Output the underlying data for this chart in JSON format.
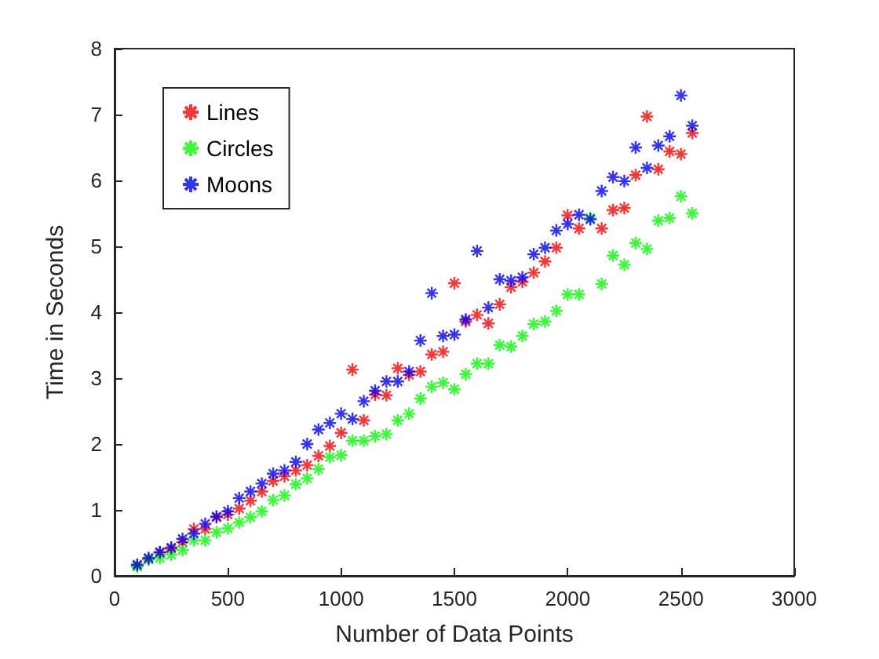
{
  "chart_data": {
    "type": "scatter",
    "xlabel": "Number of Data Points",
    "ylabel": "Time in Seconds",
    "x": [
      100,
      150,
      200,
      250,
      300,
      350,
      400,
      450,
      500,
      550,
      600,
      650,
      700,
      750,
      800,
      850,
      900,
      950,
      1000,
      1050,
      1100,
      1150,
      1200,
      1250,
      1300,
      1350,
      1400,
      1450,
      1500,
      1550,
      1600,
      1650,
      1700,
      1750,
      1800,
      1850,
      1900,
      1950,
      2000,
      2050,
      2100,
      2150,
      2200,
      2250,
      2300,
      2350,
      2400,
      2450,
      2500,
      2550
    ],
    "series": [
      {
        "name": "Lines",
        "color": "#ff0000",
        "values": [
          0.15,
          0.25,
          0.35,
          0.41,
          0.51,
          0.71,
          0.71,
          0.89,
          0.93,
          1.02,
          1.14,
          1.28,
          1.44,
          1.51,
          1.6,
          1.68,
          1.82,
          1.97,
          2.17,
          3.13,
          2.36,
          2.75,
          2.74,
          3.15,
          3.05,
          3.1,
          3.36,
          3.4,
          4.44,
          3.86,
          3.96,
          3.83,
          4.12,
          4.38,
          4.46,
          4.6,
          4.77,
          4.98,
          5.47,
          5.27,
          null,
          5.27,
          5.55,
          5.58,
          6.08,
          6.97,
          6.17,
          6.44,
          6.4,
          6.72
        ]
      },
      {
        "name": "Circles",
        "color": "#00ff00",
        "values": [
          0.14,
          0.25,
          0.27,
          0.32,
          0.39,
          0.54,
          0.54,
          0.66,
          0.72,
          0.81,
          0.89,
          0.98,
          1.15,
          1.22,
          1.39,
          1.48,
          1.62,
          1.8,
          1.83,
          2.05,
          2.05,
          2.12,
          2.15,
          2.36,
          2.46,
          2.69,
          2.87,
          2.93,
          2.83,
          3.06,
          3.22,
          3.22,
          3.5,
          3.48,
          3.64,
          3.82,
          3.86,
          4.02,
          4.27,
          4.27,
          5.43,
          4.43,
          4.86,
          4.72,
          5.05,
          4.96,
          5.39,
          5.43,
          5.76,
          5.5
        ]
      },
      {
        "name": "Moons",
        "color": "#0000ff",
        "values": [
          0.17,
          0.27,
          0.36,
          0.43,
          0.56,
          0.64,
          0.79,
          0.9,
          0.98,
          1.18,
          1.28,
          1.4,
          1.55,
          1.6,
          1.73,
          2.0,
          2.22,
          2.32,
          2.46,
          2.38,
          2.65,
          2.81,
          2.95,
          2.95,
          3.1,
          3.57,
          4.29,
          3.64,
          3.66,
          3.89,
          4.93,
          4.07,
          4.5,
          4.48,
          4.53,
          4.88,
          4.98,
          5.24,
          5.34,
          5.48,
          5.41,
          5.84,
          6.05,
          5.99,
          6.5,
          6.19,
          6.53,
          6.67,
          7.29,
          6.83
        ]
      }
    ],
    "xlim": [
      0,
      3000
    ],
    "xticks": [
      0,
      500,
      1000,
      1500,
      2000,
      2500,
      3000
    ],
    "ylim": [
      0,
      8
    ],
    "yticks": [
      0,
      1,
      2,
      3,
      4,
      5,
      6,
      7,
      8
    ],
    "legend": "top left",
    "marker": "cross",
    "grid": false
  }
}
